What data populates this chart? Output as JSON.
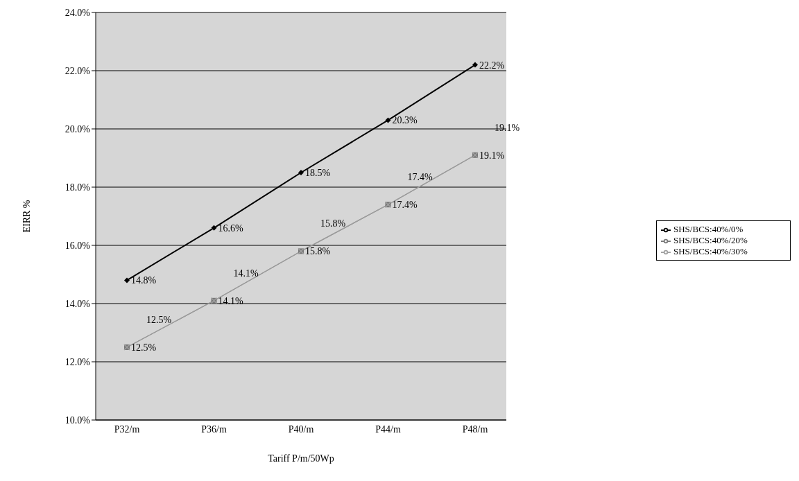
{
  "chart_data": {
    "type": "line",
    "xlabel": "Tariff P/m/50Wp",
    "ylabel": "EIRR %",
    "categories": [
      "P32/m",
      "P36/m",
      "P40/m",
      "P44/m",
      "P48/m"
    ],
    "series": [
      {
        "name": "SHS/BCS:40%/0%",
        "color": "#000000",
        "marker": "diamond",
        "values": [
          14.8,
          16.6,
          18.5,
          20.3,
          22.2
        ],
        "value_labels": [
          "14.8%",
          "16.6%",
          "18.5%",
          "20.3%",
          "22.2%"
        ]
      },
      {
        "name": "SHS/BCS:40%/20%",
        "color": "#777777",
        "marker": "square",
        "values": [
          12.5,
          14.1,
          15.8,
          17.4,
          19.1
        ],
        "value_labels": [
          "12.5%",
          "14.1%",
          "15.8%",
          "17.4%",
          "19.1%"
        ]
      },
      {
        "name": "SHS/BCS:40%/30%",
        "color": "#a0a0a0",
        "marker": "cross",
        "values": [
          12.5,
          14.1,
          15.8,
          17.4,
          19.1
        ],
        "value_labels": [
          "12.5%",
          "14.1%",
          "15.8%",
          "17.4%",
          "19.1%"
        ]
      }
    ],
    "ylim": [
      10,
      24
    ],
    "yticks": [
      {
        "value": 10,
        "label": "10.0%"
      },
      {
        "value": 12,
        "label": "12.0%"
      },
      {
        "value": 14,
        "label": "14.0%"
      },
      {
        "value": 16,
        "label": "16.0%"
      },
      {
        "value": 18,
        "label": "18.0%"
      },
      {
        "value": 20,
        "label": "20.0%"
      },
      {
        "value": 22,
        "label": "22.0%"
      },
      {
        "value": 24,
        "label": "24.0%"
      }
    ],
    "grid": "y",
    "legend": "right"
  }
}
